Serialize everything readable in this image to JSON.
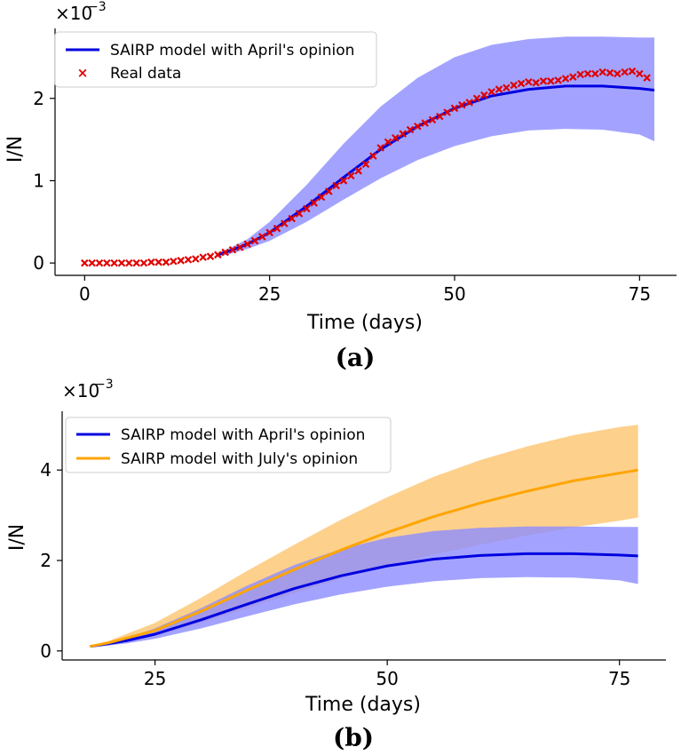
{
  "chart_data": [
    {
      "type": "line",
      "panel_label": "(a)",
      "xlabel": "Time (days)",
      "ylabel": "I/N",
      "y_multiplier": "×10",
      "y_multiplier_exp": "−3",
      "xlim": [
        -4,
        80
      ],
      "ylim": [
        -0.15,
        2.85
      ],
      "xticks": [
        0,
        25,
        50,
        75
      ],
      "yticks": [
        0,
        1,
        2
      ],
      "legend_position": "top-left",
      "bands": [
        {
          "color": "#8c8cff",
          "x": [
            18,
            20,
            22,
            25,
            30,
            35,
            40,
            45,
            50,
            55,
            60,
            65,
            70,
            75,
            77
          ],
          "lower": [
            0.07,
            0.12,
            0.17,
            0.27,
            0.5,
            0.77,
            1.03,
            1.25,
            1.42,
            1.54,
            1.61,
            1.63,
            1.62,
            1.56,
            1.48
          ],
          "upper": [
            0.12,
            0.2,
            0.29,
            0.5,
            0.95,
            1.45,
            1.9,
            2.25,
            2.5,
            2.65,
            2.72,
            2.75,
            2.75,
            2.74,
            2.74
          ]
        }
      ],
      "series": [
        {
          "name": "SAIRP model with April's opinion",
          "style": "line",
          "color": "#0000e0",
          "x": [
            18,
            20,
            22,
            25,
            30,
            35,
            40,
            45,
            50,
            55,
            60,
            65,
            70,
            75,
            77
          ],
          "y": [
            0.1,
            0.16,
            0.23,
            0.37,
            0.69,
            1.04,
            1.38,
            1.66,
            1.88,
            2.03,
            2.11,
            2.15,
            2.15,
            2.12,
            2.1
          ]
        },
        {
          "name": "Real data",
          "style": "marker",
          "color": "#e00000",
          "x": [
            0,
            1,
            2,
            3,
            4,
            5,
            6,
            7,
            8,
            9,
            10,
            11,
            12,
            13,
            14,
            15,
            16,
            17,
            18,
            19,
            20,
            21,
            22,
            23,
            24,
            25,
            26,
            27,
            28,
            29,
            30,
            31,
            32,
            33,
            34,
            35,
            36,
            37,
            38,
            39,
            40,
            41,
            42,
            43,
            44,
            45,
            46,
            47,
            48,
            49,
            50,
            51,
            52,
            53,
            54,
            55,
            56,
            57,
            58,
            59,
            60,
            61,
            62,
            63,
            64,
            65,
            66,
            67,
            68,
            69,
            70,
            71,
            72,
            73,
            74,
            75,
            76
          ],
          "y": [
            0,
            0,
            0,
            0,
            0,
            0,
            0,
            0,
            0,
            0.01,
            0.01,
            0.01,
            0.02,
            0.03,
            0.04,
            0.05,
            0.07,
            0.08,
            0.1,
            0.13,
            0.16,
            0.19,
            0.23,
            0.27,
            0.32,
            0.37,
            0.42,
            0.48,
            0.54,
            0.6,
            0.66,
            0.73,
            0.8,
            0.87,
            0.94,
            1.0,
            1.06,
            1.12,
            1.2,
            1.3,
            1.4,
            1.47,
            1.52,
            1.57,
            1.62,
            1.66,
            1.7,
            1.74,
            1.78,
            1.83,
            1.88,
            1.92,
            1.95,
            2.0,
            2.04,
            2.08,
            2.11,
            2.13,
            2.16,
            2.18,
            2.2,
            2.19,
            2.21,
            2.21,
            2.22,
            2.24,
            2.26,
            2.29,
            2.3,
            2.3,
            2.32,
            2.31,
            2.3,
            2.32,
            2.33,
            2.3,
            2.25
          ]
        }
      ]
    },
    {
      "type": "line",
      "panel_label": "(b)",
      "xlabel": "Time (days)",
      "ylabel": "I/N",
      "y_multiplier": "×10",
      "y_multiplier_exp": "−3",
      "xlim": [
        15,
        80
      ],
      "ylim": [
        -0.2,
        5.3
      ],
      "xticks": [
        25,
        50,
        75
      ],
      "yticks": [
        0,
        2,
        4
      ],
      "legend_position": "top-left",
      "bands": [
        {
          "color": "#fcc46f",
          "x": [
            18,
            20,
            25,
            30,
            35,
            40,
            45,
            50,
            55,
            60,
            65,
            70,
            75,
            77
          ],
          "lower": [
            0.08,
            0.14,
            0.33,
            0.62,
            0.95,
            1.28,
            1.6,
            1.88,
            2.13,
            2.35,
            2.55,
            2.73,
            2.88,
            2.95
          ],
          "upper": [
            0.12,
            0.22,
            0.62,
            1.18,
            1.78,
            2.35,
            2.9,
            3.4,
            3.85,
            4.22,
            4.52,
            4.77,
            4.95,
            5.0
          ]
        },
        {
          "color": "#8c8cff",
          "x": [
            18,
            20,
            22,
            25,
            30,
            35,
            40,
            45,
            50,
            55,
            60,
            65,
            70,
            75,
            77
          ],
          "lower": [
            0.07,
            0.12,
            0.17,
            0.27,
            0.5,
            0.77,
            1.03,
            1.25,
            1.42,
            1.54,
            1.61,
            1.63,
            1.62,
            1.56,
            1.48
          ],
          "upper": [
            0.12,
            0.2,
            0.29,
            0.5,
            0.95,
            1.45,
            1.9,
            2.25,
            2.5,
            2.65,
            2.72,
            2.75,
            2.75,
            2.74,
            2.74
          ]
        }
      ],
      "series": [
        {
          "name": "SAIRP model with April's opinion",
          "style": "line",
          "color": "#0000e0",
          "x": [
            18,
            20,
            22,
            25,
            30,
            35,
            40,
            45,
            50,
            55,
            60,
            65,
            70,
            75,
            77
          ],
          "y": [
            0.1,
            0.16,
            0.23,
            0.37,
            0.69,
            1.04,
            1.38,
            1.66,
            1.88,
            2.03,
            2.11,
            2.15,
            2.15,
            2.12,
            2.1
          ]
        },
        {
          "name": "SAIRP model with July's opinion",
          "style": "line",
          "color": "#ffa500",
          "x": [
            18,
            20,
            25,
            30,
            35,
            40,
            45,
            50,
            55,
            60,
            65,
            70,
            75,
            77
          ],
          "y": [
            0.1,
            0.18,
            0.45,
            0.88,
            1.35,
            1.8,
            2.23,
            2.62,
            2.97,
            3.27,
            3.53,
            3.76,
            3.93,
            4.0
          ]
        }
      ]
    }
  ]
}
